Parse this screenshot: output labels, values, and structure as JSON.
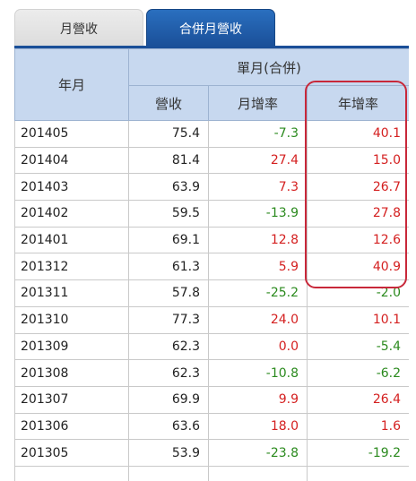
{
  "tabs": [
    {
      "label": "月營收",
      "active": false
    },
    {
      "label": "合併月營收",
      "active": true
    }
  ],
  "header": {
    "year_month": "年月",
    "group": "單月(合併)",
    "revenue": "營收",
    "mom": "月增率",
    "yoy": "年增率"
  },
  "rows": [
    {
      "ym": "201405",
      "revenue": "75.4",
      "mom": "-7.3",
      "yoy": "40.1"
    },
    {
      "ym": "201404",
      "revenue": "81.4",
      "mom": "27.4",
      "yoy": "15.0"
    },
    {
      "ym": "201403",
      "revenue": "63.9",
      "mom": "7.3",
      "yoy": "26.7"
    },
    {
      "ym": "201402",
      "revenue": "59.5",
      "mom": "-13.9",
      "yoy": "27.8"
    },
    {
      "ym": "201401",
      "revenue": "69.1",
      "mom": "12.8",
      "yoy": "12.6"
    },
    {
      "ym": "201312",
      "revenue": "61.3",
      "mom": "5.9",
      "yoy": "40.9"
    },
    {
      "ym": "201311",
      "revenue": "57.8",
      "mom": "-25.2",
      "yoy": "-2.0"
    },
    {
      "ym": "201310",
      "revenue": "77.3",
      "mom": "24.0",
      "yoy": "10.1"
    },
    {
      "ym": "201309",
      "revenue": "62.3",
      "mom": "0.0",
      "yoy": "-5.4"
    },
    {
      "ym": "201308",
      "revenue": "62.3",
      "mom": "-10.8",
      "yoy": "-6.2"
    },
    {
      "ym": "201307",
      "revenue": "69.9",
      "mom": "9.9",
      "yoy": "26.4"
    },
    {
      "ym": "201306",
      "revenue": "63.6",
      "mom": "18.0",
      "yoy": "1.6"
    },
    {
      "ym": "201305",
      "revenue": "53.9",
      "mom": "-23.8",
      "yoy": "-19.2"
    },
    {
      "ym": "",
      "revenue": "",
      "mom": "",
      "yoy": ""
    }
  ],
  "colors": {
    "positive": "#d42020",
    "negative": "#2b8a1e",
    "highlight_border": "#c8283a",
    "tab_active": "#1a4f98",
    "header_bg": "#c7d8ef"
  }
}
